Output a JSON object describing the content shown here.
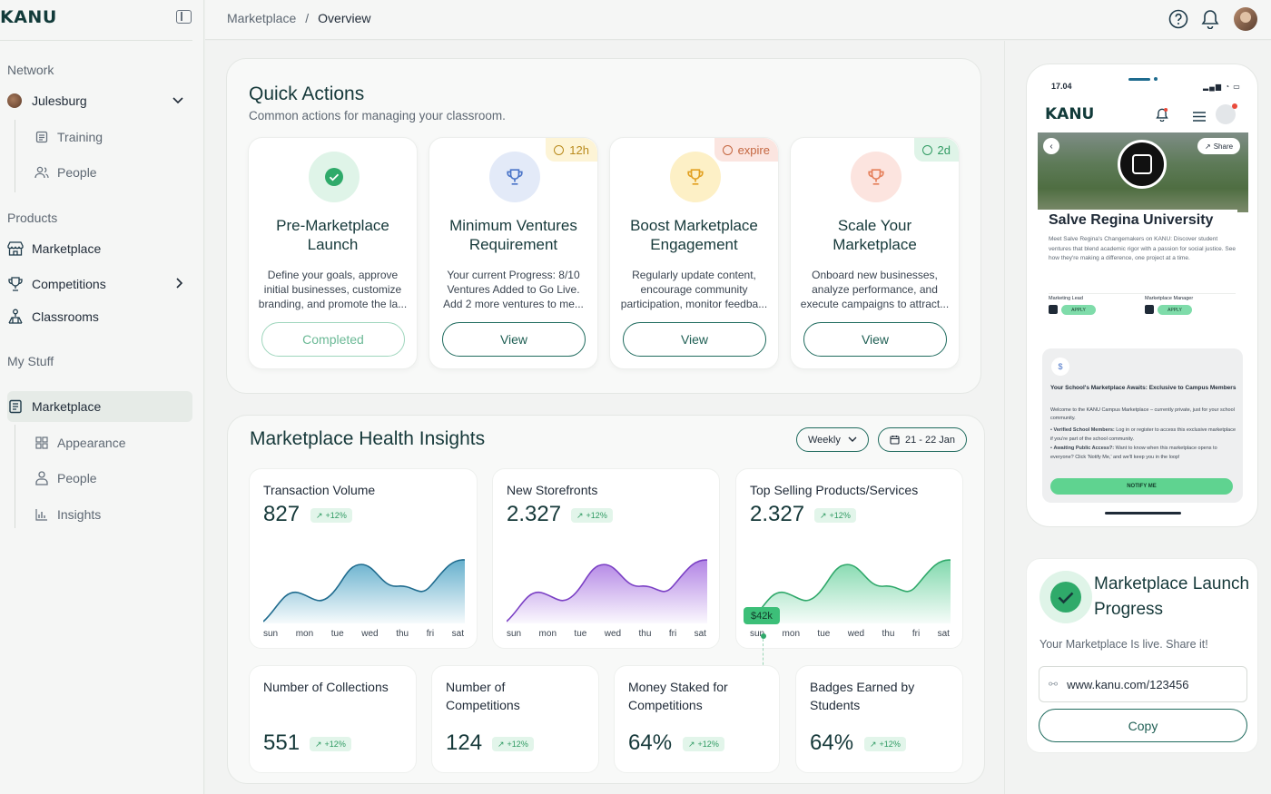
{
  "brand": {
    "logo": "KANU",
    "accent": "#16a36a",
    "dark": "#16393a"
  },
  "sidebar": {
    "sections": {
      "network": "Network",
      "products": "Products",
      "my_stuff": "My Stuff"
    },
    "network_item": "Julesburg",
    "network_sub": [
      "Training",
      "People"
    ],
    "products_items": [
      "Marketplace",
      "Competitions",
      "Classrooms"
    ],
    "mystuff_item": "Marketplace",
    "mystuff_sub": [
      "Appearance",
      "People",
      "Insights"
    ]
  },
  "topbar": {
    "breadcrumb_parent": "Marketplace",
    "breadcrumb_sep": "/",
    "breadcrumb_current": "Overview"
  },
  "quick_actions": {
    "title": "Quick Actions",
    "subtitle": "Common actions for managing your classroom.",
    "cards": [
      {
        "title": "Pre-Marketplace Launch",
        "desc": "Define your goals, approve initial businesses, customize branding, and promote the la...",
        "button": "Completed",
        "badge": "",
        "color": "#2faa6a"
      },
      {
        "title": "Minimum Ventures Requirement",
        "desc": "Your current Progress: 8/10 Ventures Added to Go Live. Add 2 more ventures to me...",
        "button": "View",
        "badge": "12h",
        "color": "#4a74c8"
      },
      {
        "title": "Boost Marketplace Engagement",
        "desc": "Regularly update content, encourage community participation, monitor feedba...",
        "button": "View",
        "badge": "expire",
        "color": "#e2a020"
      },
      {
        "title": "Scale Your Marketplace",
        "desc": "Onboard new businesses, analyze performance, and execute campaigns to attract...",
        "button": "View",
        "badge": "2d",
        "color": "#e57f5a"
      }
    ]
  },
  "insights": {
    "title": "Marketplace Health Insights",
    "period": "Weekly",
    "date_range": "21 - 22 Jan",
    "charts": [
      {
        "label": "Transaction Volume",
        "value": "827",
        "change": "+12%"
      },
      {
        "label": "New Storefronts",
        "value": "2.327",
        "change": "+12%"
      },
      {
        "label": "Top Selling Products/Services",
        "value": "2.327",
        "change": "+12%",
        "tooltip": "$42k"
      }
    ],
    "days": [
      "sun",
      "mon",
      "tue",
      "wed",
      "thu",
      "fri",
      "sat"
    ],
    "stats": [
      {
        "label": "Number of Collections",
        "value": "551",
        "change": "+12%"
      },
      {
        "label": "Number of Competitions",
        "value": "124",
        "change": "+12%"
      },
      {
        "label": "Money Staked for Competitions",
        "value": "64%",
        "change": "+12%"
      },
      {
        "label": "Badges Earned by Students",
        "value": "64%",
        "change": "+12%"
      }
    ]
  },
  "phone": {
    "time": "17.04",
    "logo": "KANU",
    "share": "Share",
    "university": "Salve Regina University",
    "uni_desc": "Meet Salve Regina's Changemakers on KANU: Discover student ventures that blend academic rigor with a passion for social justice. See how they're making a difference, one project at a time.",
    "roles": [
      {
        "label": "Marketing Lead",
        "button": "APPLY"
      },
      {
        "label": "Marketplace Manager",
        "button": "APPLY"
      }
    ],
    "notice_title": "Your School's Marketplace Awaits: Exclusive to Campus Members",
    "notice_body": "Welcome to the KANU Campus Marketplace – currently private, just for your school community.",
    "bullet1_title": "Verified School Members:",
    "bullet1_body": "Log in or register to access this exclusive marketplace if you're part of the school community.",
    "bullet2_title": "Awaiting Public Access?:",
    "bullet2_body": "Want to know when this marketplace opens to everyone? Click 'Notify Me,' and we'll keep you in the loop!",
    "notify": "NOTIFY ME"
  },
  "launch": {
    "title": "Marketplace Launch Progress",
    "sub": "Your Marketplace Is live. Share it!",
    "url": "www.kanu.com/123456",
    "copy": "Copy"
  }
}
